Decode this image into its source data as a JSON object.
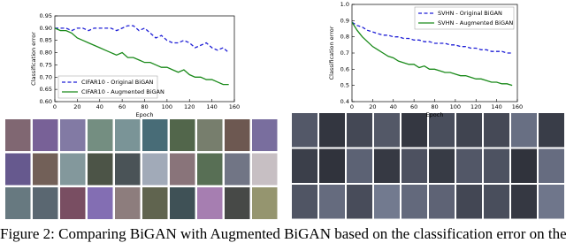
{
  "chart_data": [
    {
      "type": "line",
      "xlabel": "Epoch",
      "ylabel": "Classification error",
      "x": [
        0,
        5,
        10,
        15,
        20,
        25,
        30,
        35,
        40,
        45,
        50,
        55,
        60,
        65,
        70,
        75,
        80,
        85,
        90,
        95,
        100,
        105,
        110,
        115,
        120,
        125,
        130,
        135,
        140,
        145,
        150,
        155
      ],
      "series": [
        {
          "name": "CIFAR10 - Original BiGAN",
          "color": "#1f1fd6",
          "linestyle": "dashed",
          "values": [
            0.9,
            0.9,
            0.9,
            0.89,
            0.9,
            0.9,
            0.89,
            0.9,
            0.9,
            0.9,
            0.9,
            0.89,
            0.9,
            0.91,
            0.91,
            0.89,
            0.9,
            0.88,
            0.86,
            0.87,
            0.85,
            0.84,
            0.84,
            0.85,
            0.84,
            0.82,
            0.83,
            0.84,
            0.82,
            0.81,
            0.82,
            0.8
          ]
        },
        {
          "name": "CIFAR10 - Augmented BiGAN",
          "color": "#1a8a1a",
          "linestyle": "solid",
          "values": [
            0.9,
            0.89,
            0.89,
            0.88,
            0.86,
            0.85,
            0.84,
            0.83,
            0.82,
            0.81,
            0.8,
            0.79,
            0.8,
            0.78,
            0.78,
            0.77,
            0.76,
            0.76,
            0.75,
            0.74,
            0.74,
            0.73,
            0.72,
            0.73,
            0.71,
            0.7,
            0.7,
            0.69,
            0.69,
            0.68,
            0.67,
            0.67
          ]
        }
      ],
      "xlim": [
        0,
        160
      ],
      "xticks": [
        0,
        20,
        40,
        60,
        80,
        100,
        120,
        140,
        160
      ],
      "ylim": [
        0.6,
        0.95
      ],
      "yticks": [
        {
          "value": 0.6,
          "label": "0.60"
        },
        0.65,
        {
          "value": 0.7,
          "label": "0.70"
        },
        0.75,
        {
          "value": 0.8,
          "label": "0.80"
        },
        0.85,
        {
          "value": 0.9,
          "label": "0.90"
        },
        0.95
      ],
      "legend": "lower left"
    },
    {
      "type": "line",
      "xlabel": "Epoch",
      "ylabel": "Classification error",
      "x": [
        0,
        5,
        10,
        15,
        20,
        25,
        30,
        35,
        40,
        45,
        50,
        55,
        60,
        65,
        70,
        75,
        80,
        85,
        90,
        95,
        100,
        105,
        110,
        115,
        120,
        125,
        130,
        135,
        140,
        145,
        150,
        155
      ],
      "series": [
        {
          "name": "SVHN - Original BiGAN",
          "color": "#1f1fd6",
          "linestyle": "dashed",
          "values": [
            0.89,
            0.87,
            0.86,
            0.84,
            0.83,
            0.82,
            0.81,
            0.81,
            0.8,
            0.8,
            0.79,
            0.79,
            0.78,
            0.78,
            0.77,
            0.77,
            0.76,
            0.76,
            0.76,
            0.75,
            0.75,
            0.74,
            0.74,
            0.73,
            0.73,
            0.72,
            0.72,
            0.71,
            0.71,
            0.71,
            0.7,
            0.7
          ]
        },
        {
          "name": "SVHN - Augmented BiGAN",
          "color": "#1a8a1a",
          "linestyle": "solid",
          "values": [
            0.89,
            0.84,
            0.8,
            0.77,
            0.74,
            0.72,
            0.7,
            0.68,
            0.67,
            0.65,
            0.64,
            0.63,
            0.63,
            0.61,
            0.62,
            0.6,
            0.6,
            0.59,
            0.58,
            0.58,
            0.57,
            0.56,
            0.56,
            0.55,
            0.54,
            0.54,
            0.53,
            0.52,
            0.52,
            0.51,
            0.51,
            0.5
          ]
        }
      ],
      "xlim": [
        0,
        160
      ],
      "xticks": [
        0,
        20,
        40,
        60,
        80,
        100,
        120,
        140,
        160
      ],
      "ylim": [
        0.4,
        1.0
      ],
      "yticks": [
        0.4,
        0.5,
        0.6,
        0.7,
        0.8,
        0.9,
        {
          "value": 1.0,
          "label": "1.0"
        }
      ],
      "legend": "upper right"
    }
  ],
  "caption": "Figure 2: Comparing BiGAN with Augmented BiGAN based on the classification error on the"
}
